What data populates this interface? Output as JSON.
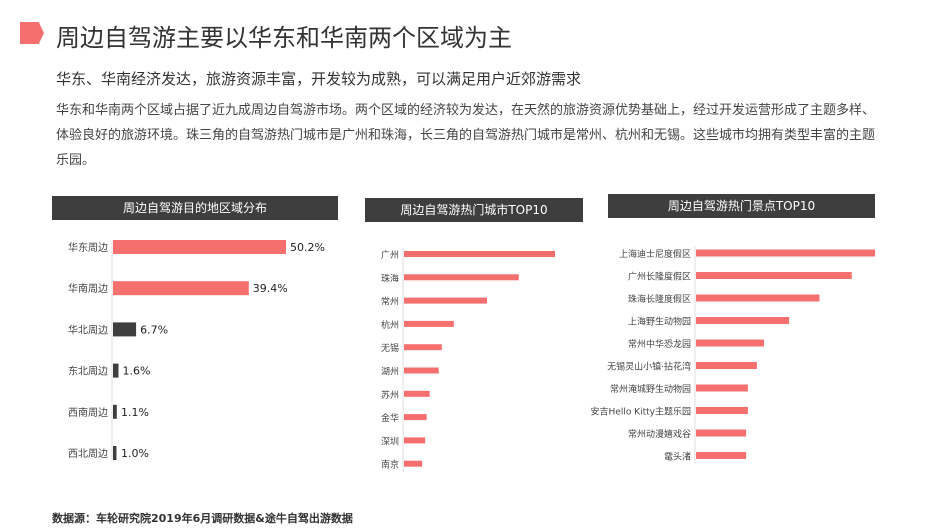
{
  "header": {
    "title": "周边自驾游主要以华东和华南两个区域为主",
    "subtitle": "华东、华南经济发达，旅游资源丰富，开发较为成熟，可以满足用户近郊游需求",
    "body": "华东和华南两个区域占据了近九成周边自驾游市场。两个区域的经济较为发达，在天然的旅游资源优势基础上，经过开发运营形成了主题多样、体验良好的旅游环境。珠三角的自驾游热门城市是广州和珠海，长三角的自驾游热门城市是常州、杭州和无锡。这些城市均拥有类型丰富的主题乐园。"
  },
  "colors": {
    "accent": "#f56f6f",
    "dark": "#3e3e3e"
  },
  "chart_data": [
    {
      "type": "bar",
      "orientation": "horizontal",
      "title": "周边自驾游目的地区域分布",
      "categories": [
        "华东周边",
        "华南周边",
        "华北周边",
        "东北周边",
        "西南周边",
        "西北周边"
      ],
      "values": [
        50.2,
        39.4,
        6.7,
        1.6,
        1.1,
        1.0
      ],
      "data_labels": [
        "50.2%",
        "39.4%",
        "6.7%",
        "1.6%",
        "1.1%",
        "1.0%"
      ],
      "bar_colors": [
        "#f56f6f",
        "#f56f6f",
        "#3e3e3e",
        "#3e3e3e",
        "#3e3e3e",
        "#3e3e3e"
      ],
      "xlim": [
        0,
        50.2
      ]
    },
    {
      "type": "bar",
      "orientation": "horizontal",
      "title": "周边自驾游热门城市TOP10",
      "categories": [
        "广州",
        "珠海",
        "常州",
        "杭州",
        "无锡",
        "湖州",
        "苏州",
        "金华",
        "深圳",
        "南京"
      ],
      "values": [
        100,
        76,
        55,
        33,
        25,
        23,
        17,
        15,
        14,
        12
      ],
      "xlim": [
        0,
        100
      ]
    },
    {
      "type": "bar",
      "orientation": "horizontal",
      "title": "周边自驾游热门景点TOP10",
      "categories": [
        "上海迪士尼度假区",
        "广州长隆度假区",
        "珠海长隆度假区",
        "上海野生动物园",
        "常州中华恐龙园",
        "无锡灵山小镇·拈花湾",
        "常州淹城野生动物园",
        "安吉Hello Kitty主题乐园",
        "常州动漫嬉戏谷",
        "鼋头渚"
      ],
      "values": [
        100,
        87,
        69,
        52,
        38,
        34,
        29,
        29,
        28,
        28
      ],
      "xlim": [
        0,
        100
      ]
    }
  ],
  "source": "数据源：车轮研究院2019年6月调研数据&途牛自驾出游数据"
}
